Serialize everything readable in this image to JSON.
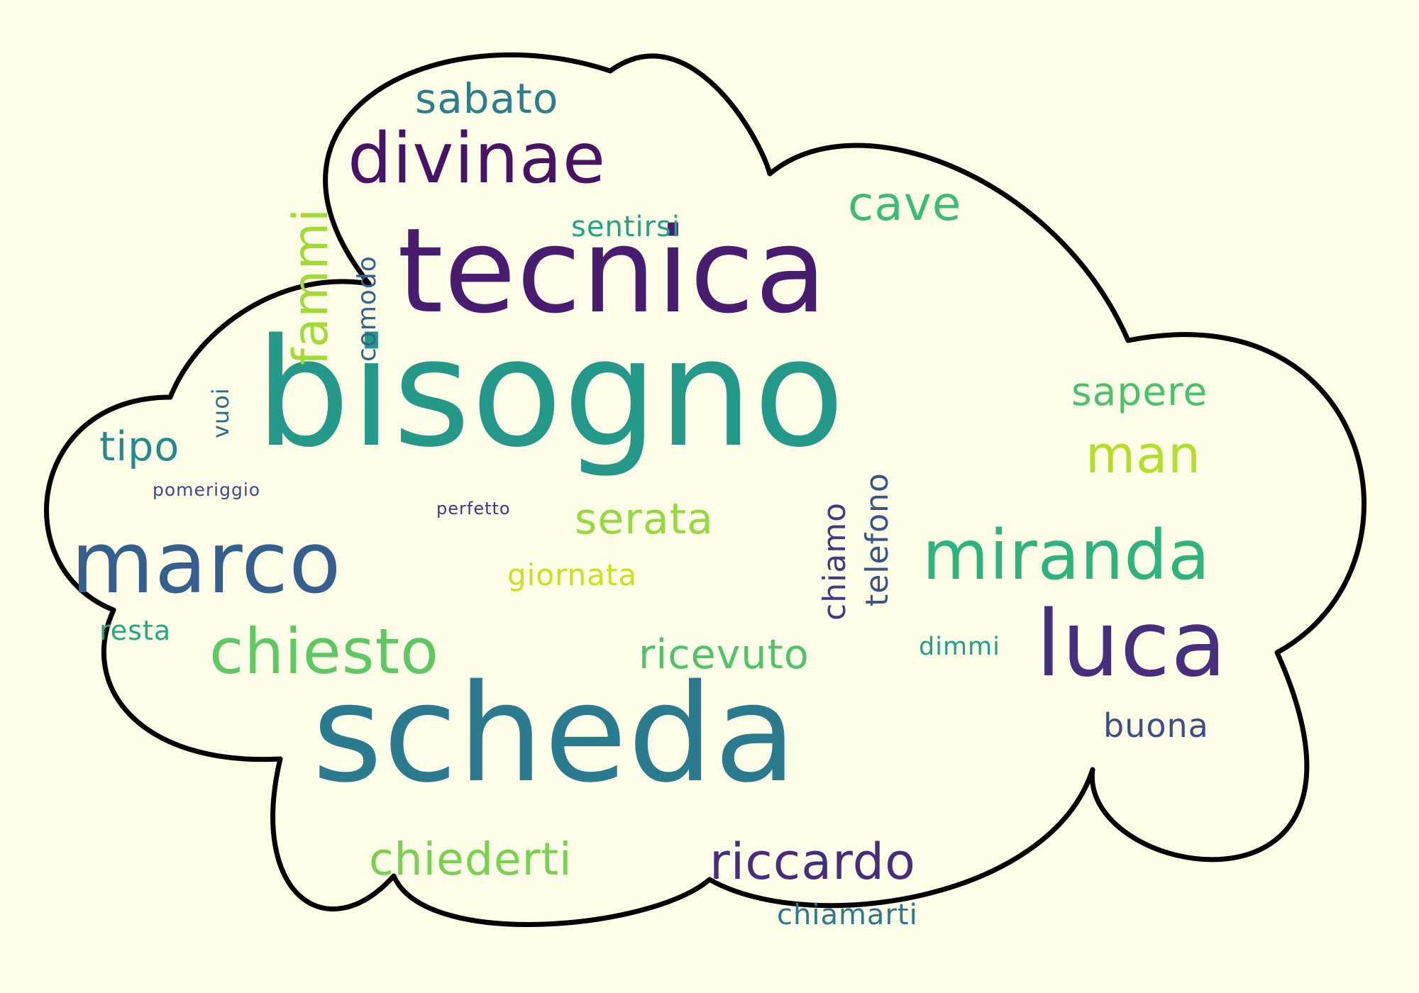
{
  "background_color": "#fdfde8",
  "cloud_outline_color": "#000000",
  "cloud_fill_color": "#fdfde8",
  "words": [
    {
      "text": "bisogno",
      "color": "#24998a"
    },
    {
      "text": "scheda",
      "color": "#2b7b8e"
    },
    {
      "text": "tecnica",
      "color": "#481c6e"
    },
    {
      "text": "marco",
      "color": "#355f8d"
    },
    {
      "text": "luca",
      "color": "#472f7d"
    },
    {
      "text": "miranda",
      "color": "#2eb37c"
    },
    {
      "text": "divinae",
      "color": "#471365"
    },
    {
      "text": "chiesto",
      "color": "#5ec962"
    },
    {
      "text": "riccardo",
      "color": "#472d7b"
    },
    {
      "text": "chiederti",
      "color": "#7ad151"
    },
    {
      "text": "sabato",
      "color": "#2a7f8e"
    },
    {
      "text": "cave",
      "color": "#3cbc74"
    },
    {
      "text": "sapere",
      "color": "#4ac16d"
    },
    {
      "text": "man",
      "color": "#b5de2b"
    },
    {
      "text": "serata",
      "color": "#95d840"
    },
    {
      "text": "ricevuto",
      "color": "#4fc46a"
    },
    {
      "text": "tipo",
      "color": "#238a8d"
    },
    {
      "text": "buona",
      "color": "#3e4c8a"
    },
    {
      "text": "chiamarti",
      "color": "#2a788e"
    },
    {
      "text": "giornata",
      "color": "#c8e020"
    },
    {
      "text": "sentirsi",
      "color": "#20a486"
    },
    {
      "text": "resta",
      "color": "#22a884"
    },
    {
      "text": "dimmi",
      "color": "#1f9e89"
    },
    {
      "text": "pomeriggio",
      "color": "#3f4889"
    },
    {
      "text": "perfetto",
      "color": "#46337f"
    },
    {
      "text": "fammi",
      "color": "#a2da37"
    },
    {
      "text": "comodo",
      "color": "#33638d"
    },
    {
      "text": "vuoi",
      "color": "#2d708e"
    },
    {
      "text": "chiamo",
      "color": "#453781"
    },
    {
      "text": "telefono",
      "color": "#3b528b"
    }
  ]
}
